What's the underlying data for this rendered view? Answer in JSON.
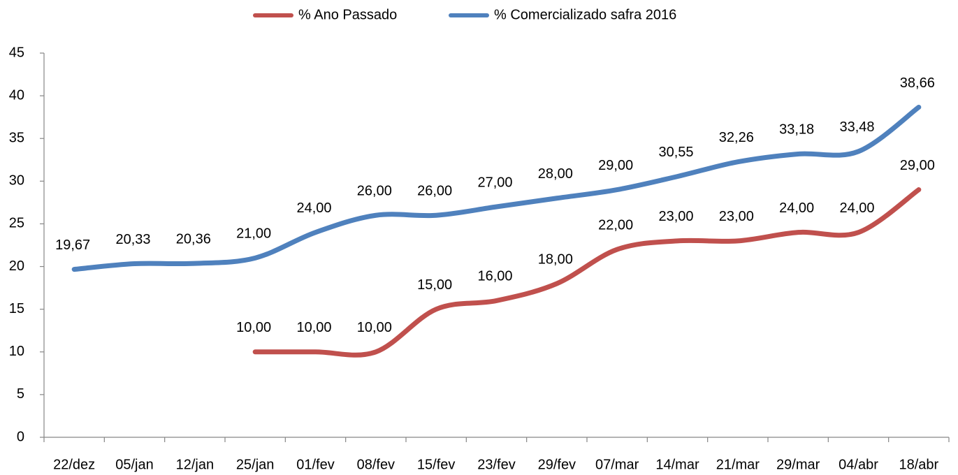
{
  "chart_data": {
    "type": "line",
    "categories": [
      "22/dez",
      "05/jan",
      "12/jan",
      "25/jan",
      "01/fev",
      "08/fev",
      "15/fev",
      "23/fev",
      "29/fev",
      "07/mar",
      "14/mar",
      "21/mar",
      "29/mar",
      "04/abr",
      "18/abr"
    ],
    "series": [
      {
        "name": "% Ano Passado",
        "color": "#c0504d",
        "values": [
          null,
          null,
          null,
          10,
          10,
          10,
          15,
          16,
          18,
          22,
          23,
          23,
          24,
          24,
          29
        ],
        "value_labels": [
          null,
          null,
          null,
          "10,00",
          "10,00",
          "10,00",
          "15,00",
          "16,00",
          "18,00",
          "22,00",
          "23,00",
          "23,00",
          "24,00",
          "24,00",
          "29,00"
        ]
      },
      {
        "name": "% Comercializado safra 2016",
        "color": "#4f81bd",
        "values": [
          19.67,
          20.33,
          20.36,
          21,
          24,
          26,
          26,
          27,
          28,
          29,
          30.55,
          32.26,
          33.18,
          33.48,
          38.66
        ],
        "value_labels": [
          "19,67",
          "20,33",
          "20,36",
          "21,00",
          "24,00",
          "26,00",
          "26,00",
          "27,00",
          "28,00",
          "29,00",
          "30,55",
          "32,26",
          "33,18",
          "33,48",
          "38,66"
        ]
      }
    ],
    "ylim": [
      0,
      45
    ],
    "yticks": [
      0,
      5,
      10,
      15,
      20,
      25,
      30,
      35,
      40,
      45
    ],
    "smooth": true,
    "legend": "top"
  }
}
